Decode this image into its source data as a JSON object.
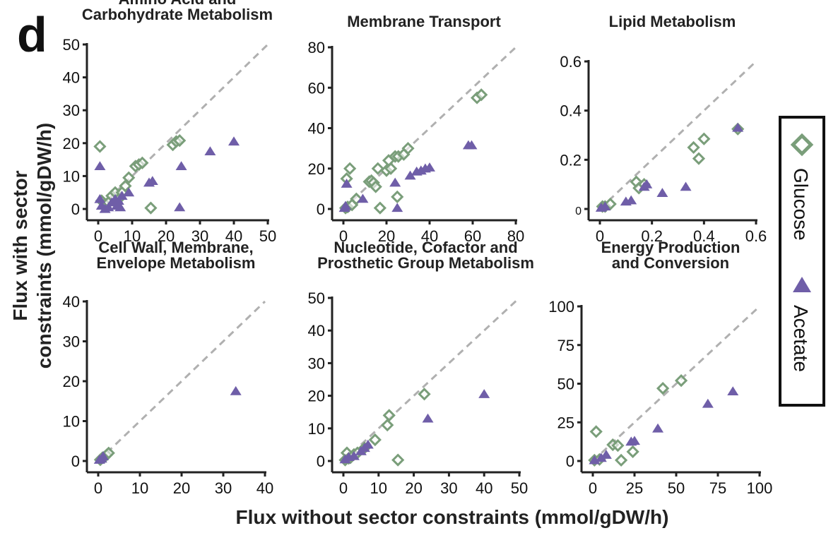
{
  "figure": {
    "panel_letter": "d",
    "xlabel": "Flux without sector constraints (mmol/gDW/h)",
    "ylabel_line1": "Flux with sector",
    "ylabel_line2": "constraints (mmol/gDW/h)",
    "legend": {
      "glucose": "Glucose",
      "acetate": "Acetate"
    },
    "colors": {
      "glucose": "#7a9e7a",
      "acetate": "#6f5ea8",
      "diagonal": "#b0b0b0",
      "axis": "#222222"
    }
  },
  "chart_data": [
    {
      "type": "scatter",
      "title": [
        "Amino Acid and",
        "Carbohydrate Metabolism"
      ],
      "xlim": [
        0,
        50
      ],
      "ylim": [
        0,
        50
      ],
      "xticks": [
        "0",
        "10",
        "20",
        "30",
        "40",
        "50"
      ],
      "yticks": [
        "0",
        "10",
        "20",
        "30",
        "40",
        "50"
      ],
      "diagonal": true,
      "series": [
        {
          "name": "Glucose",
          "marker": "diamond",
          "points": [
            [
              0.5,
              19
            ],
            [
              1,
              2.5
            ],
            [
              2,
              1.5
            ],
            [
              3,
              2
            ],
            [
              4,
              4
            ],
            [
              5,
              5
            ],
            [
              6,
              3
            ],
            [
              7,
              5
            ],
            [
              8,
              7
            ],
            [
              9,
              9.5
            ],
            [
              11,
              13
            ],
            [
              12,
              13.5
            ],
            [
              13,
              14
            ],
            [
              15.5,
              0.3
            ],
            [
              22,
              19.5
            ],
            [
              23,
              20.5
            ],
            [
              24,
              20.8
            ]
          ]
        },
        {
          "name": "Acetate",
          "marker": "triangle",
          "points": [
            [
              0.5,
              13
            ],
            [
              0.5,
              3
            ],
            [
              1,
              1
            ],
            [
              2,
              0
            ],
            [
              3,
              0.5
            ],
            [
              4,
              2
            ],
            [
              5,
              3
            ],
            [
              5.5,
              1
            ],
            [
              6,
              2.5
            ],
            [
              6.5,
              0.5
            ],
            [
              7,
              4
            ],
            [
              9,
              5
            ],
            [
              15,
              8
            ],
            [
              16,
              8.5
            ],
            [
              24,
              0.5
            ],
            [
              24.5,
              13
            ],
            [
              33,
              17.5
            ],
            [
              40,
              20.5
            ]
          ]
        }
      ]
    },
    {
      "type": "scatter",
      "title": [
        "Membrane Transport"
      ],
      "xlim": [
        0,
        80
      ],
      "ylim": [
        0,
        80
      ],
      "xticks": [
        "0",
        "20",
        "40",
        "60",
        "80"
      ],
      "yticks": [
        "0",
        "20",
        "40",
        "60",
        "80"
      ],
      "diagonal": true,
      "series": [
        {
          "name": "Glucose",
          "marker": "diamond",
          "points": [
            [
              1,
              0.5
            ],
            [
              1.5,
              15
            ],
            [
              2,
              1
            ],
            [
              3,
              20
            ],
            [
              4,
              2
            ],
            [
              6,
              5
            ],
            [
              12,
              13.5
            ],
            [
              13,
              14
            ],
            [
              14,
              13
            ],
            [
              15,
              11
            ],
            [
              16,
              20
            ],
            [
              17,
              0.5
            ],
            [
              20,
              19
            ],
            [
              21,
              24
            ],
            [
              22,
              20
            ],
            [
              24,
              26
            ],
            [
              25,
              6
            ],
            [
              25.5,
              26
            ],
            [
              28,
              27
            ],
            [
              30,
              30
            ],
            [
              62,
              55
            ],
            [
              64,
              56.5
            ]
          ]
        },
        {
          "name": "Acetate",
          "marker": "triangle",
          "points": [
            [
              0.5,
              0.5
            ],
            [
              1,
              1.5
            ],
            [
              1.5,
              12.5
            ],
            [
              9,
              5
            ],
            [
              24,
              13
            ],
            [
              25,
              0.5
            ],
            [
              31,
              16.5
            ],
            [
              34,
              18.5
            ],
            [
              36,
              19
            ],
            [
              38,
              20
            ],
            [
              40,
              20.5
            ],
            [
              58,
              31.5
            ],
            [
              59.5,
              31.5
            ]
          ]
        }
      ]
    },
    {
      "type": "scatter",
      "title": [
        "Lipid Metabolism"
      ],
      "xlim": [
        0,
        0.6
      ],
      "ylim": [
        0,
        0.6
      ],
      "xticks": [
        "0",
        "0.2",
        "0.4",
        "0.6"
      ],
      "yticks": [
        "0",
        "0.2",
        "0.4",
        "0.6"
      ],
      "diagonal": true,
      "series": [
        {
          "name": "Glucose",
          "marker": "diamond",
          "points": [
            [
              0.01,
              0.01
            ],
            [
              0.02,
              0.01
            ],
            [
              0.04,
              0.02
            ],
            [
              0.14,
              0.11
            ],
            [
              0.15,
              0.085
            ],
            [
              0.17,
              0.1
            ],
            [
              0.36,
              0.25
            ],
            [
              0.38,
              0.205
            ],
            [
              0.4,
              0.285
            ],
            [
              0.53,
              0.325
            ]
          ]
        },
        {
          "name": "Acetate",
          "marker": "triangle",
          "points": [
            [
              0.005,
              0.005
            ],
            [
              0.02,
              0.01
            ],
            [
              0.1,
              0.03
            ],
            [
              0.12,
              0.035
            ],
            [
              0.17,
              0.09
            ],
            [
              0.18,
              0.1
            ],
            [
              0.24,
              0.065
            ],
            [
              0.33,
              0.09
            ],
            [
              0.53,
              0.33
            ]
          ]
        }
      ]
    },
    {
      "type": "scatter",
      "title": [
        "Cell Wall, Membrane,",
        "Envelope Metabolism"
      ],
      "xlim": [
        0,
        40
      ],
      "ylim": [
        0,
        40
      ],
      "xticks": [
        "0",
        "10",
        "20",
        "30",
        "40"
      ],
      "yticks": [
        "0",
        "10",
        "20",
        "30",
        "40"
      ],
      "diagonal": true,
      "series": [
        {
          "name": "Glucose",
          "marker": "diamond",
          "points": [
            [
              0.5,
              0.3
            ],
            [
              1,
              0.8
            ],
            [
              1.5,
              1
            ],
            [
              2,
              1.5
            ],
            [
              2.5,
              2
            ]
          ]
        },
        {
          "name": "Acetate",
          "marker": "triangle",
          "points": [
            [
              0.3,
              0.3
            ],
            [
              0.8,
              0.6
            ],
            [
              1.2,
              1.2
            ],
            [
              33,
              17.5
            ]
          ]
        }
      ]
    },
    {
      "type": "scatter",
      "title": [
        "Nucleotide, Cofactor and",
        "Prosthetic Group Metabolism"
      ],
      "xlim": [
        0,
        50
      ],
      "ylim": [
        0,
        50
      ],
      "xticks": [
        "0",
        "10",
        "20",
        "30",
        "40",
        "50"
      ],
      "yticks": [
        "0",
        "10",
        "20",
        "30",
        "40",
        "50"
      ],
      "diagonal": true,
      "series": [
        {
          "name": "Glucose",
          "marker": "diamond",
          "points": [
            [
              0.5,
              0.3
            ],
            [
              1,
              2.5
            ],
            [
              1.5,
              0.8
            ],
            [
              2,
              1
            ],
            [
              3,
              2
            ],
            [
              4,
              2.5
            ],
            [
              6,
              4
            ],
            [
              9,
              6.5
            ],
            [
              12.5,
              11
            ],
            [
              13,
              14
            ],
            [
              15.5,
              0.3
            ],
            [
              23,
              20.5
            ]
          ]
        },
        {
          "name": "Acetate",
          "marker": "triangle",
          "points": [
            [
              0.5,
              0.5
            ],
            [
              1.5,
              1.2
            ],
            [
              3,
              1.5
            ],
            [
              5,
              3
            ],
            [
              6,
              4
            ],
            [
              7,
              5
            ],
            [
              24,
              13
            ],
            [
              40,
              20.5
            ]
          ]
        }
      ]
    },
    {
      "type": "scatter",
      "title": [
        "Energy Production",
        "and Conversion"
      ],
      "xlim": [
        0,
        100
      ],
      "ylim": [
        0,
        100
      ],
      "xticks": [
        "0",
        "25",
        "50",
        "75",
        "100"
      ],
      "yticks": [
        "0",
        "25",
        "50",
        "75",
        "100"
      ],
      "diagonal": true,
      "series": [
        {
          "name": "Glucose",
          "marker": "diamond",
          "points": [
            [
              1,
              0.5
            ],
            [
              2,
              19
            ],
            [
              4,
              1
            ],
            [
              12,
              10.5
            ],
            [
              15,
              10
            ],
            [
              17,
              0.5
            ],
            [
              24,
              6
            ],
            [
              42,
              47
            ],
            [
              53,
              52
            ]
          ]
        },
        {
          "name": "Acetate",
          "marker": "triangle",
          "points": [
            [
              1,
              0.5
            ],
            [
              5,
              2
            ],
            [
              8,
              4
            ],
            [
              23,
              12.5
            ],
            [
              25,
              13
            ],
            [
              39,
              21
            ],
            [
              69,
              37
            ],
            [
              84,
              45
            ]
          ]
        }
      ]
    }
  ]
}
